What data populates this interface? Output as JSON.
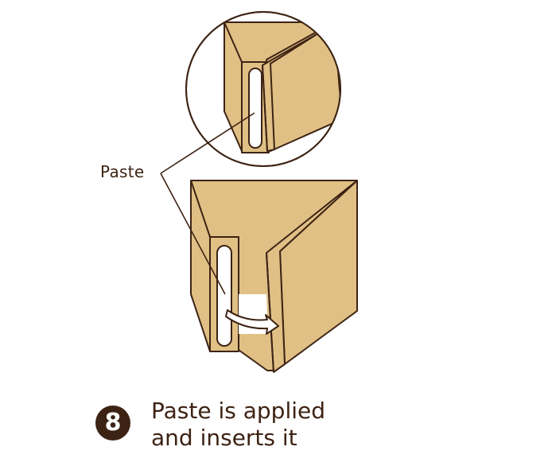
{
  "annotation": {
    "paste_label": "Paste"
  },
  "step": {
    "number": "8",
    "caption_line1": "Paste is applied",
    "caption_line2": "and inserts it"
  },
  "colors": {
    "paper": "#e0c085",
    "outline": "#3d2314",
    "slot": "#ffffff"
  },
  "icons": [
    "paste-strip-icon",
    "insert-arrow-icon",
    "magnifier-circle-icon"
  ]
}
